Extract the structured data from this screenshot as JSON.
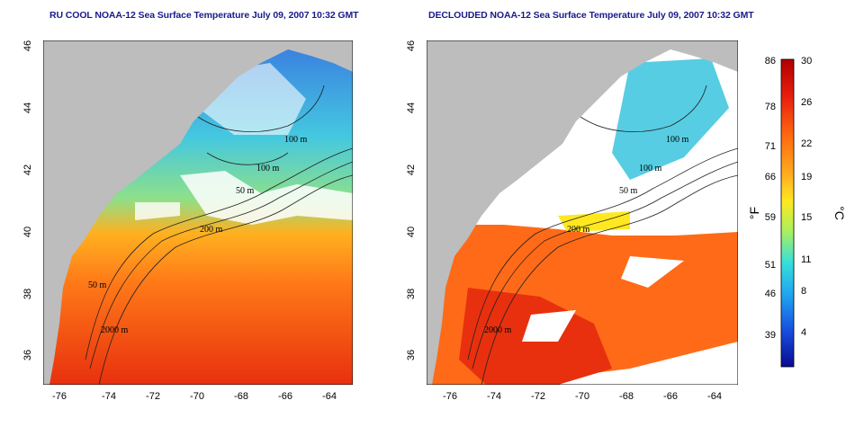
{
  "panels": [
    {
      "id": "ru-cool",
      "title": "RU COOL NOAA-12 Sea Surface Temperature July 09, 2007 10:32 GMT",
      "contour_labels": [
        "100 m",
        "100 m",
        "50 m",
        "200 m",
        "50 m",
        "2000 m"
      ]
    },
    {
      "id": "declouded",
      "title": "DECLOUDED NOAA-12 Sea Surface Temperature July 09, 2007 10:32 GMT",
      "contour_labels": [
        "100 m",
        "100 m",
        "50 m",
        "200 m",
        "2000 m"
      ]
    }
  ],
  "axes": {
    "x_ticks": [
      "-76",
      "-74",
      "-72",
      "-70",
      "-68",
      "-66",
      "-64"
    ],
    "y_ticks": [
      "36",
      "38",
      "40",
      "42",
      "44",
      "46"
    ]
  },
  "colorbar": {
    "fahrenheit_ticks": [
      "86",
      "78",
      "71",
      "66",
      "59",
      "51",
      "46",
      "39"
    ],
    "celsius_ticks": [
      "30",
      "26",
      "22",
      "19",
      "15",
      "11",
      "8",
      "4"
    ],
    "fahrenheit_label": "°F",
    "celsius_label": "°C"
  },
  "colors": {
    "land": "#bdbdbd",
    "cloud": "#ffffff",
    "title": "#1a1a8c"
  }
}
